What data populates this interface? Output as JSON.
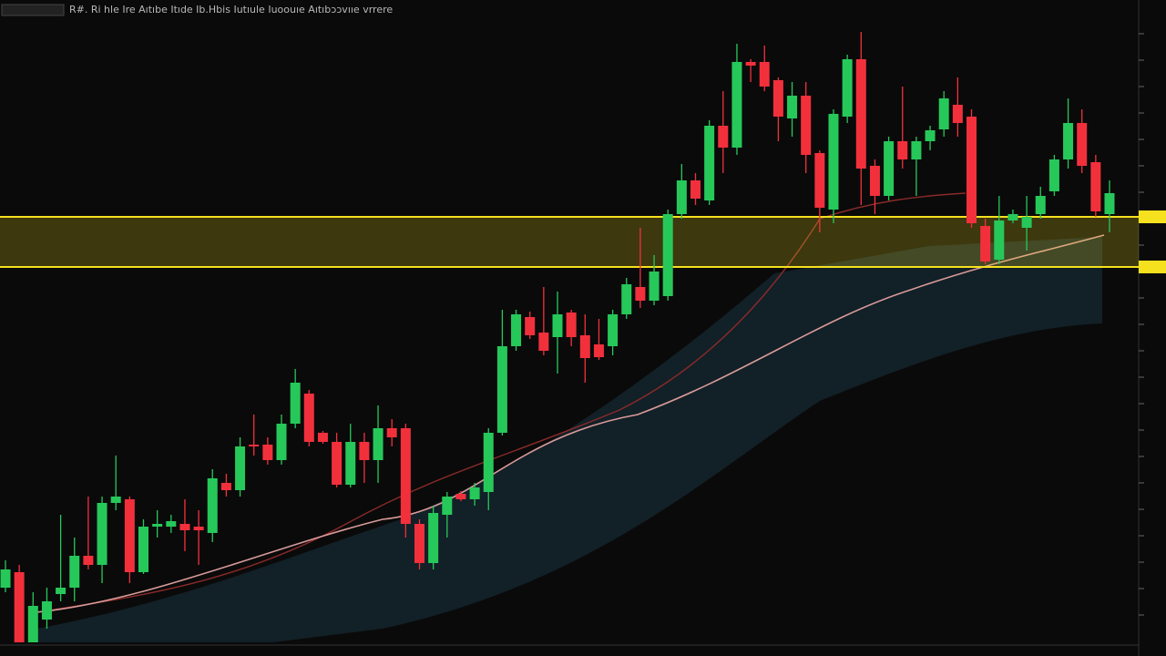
{
  "chart_data": {
    "type": "candlestick",
    "title": "R#. Ri hle Ire Aıtıbe Itıde Ib.Hbis Iutıule Iuoouıe Aıtıbɔɔvııe vrrere",
    "categories": [
      null,
      null,
      null,
      null,
      null,
      null,
      null,
      null,
      null,
      null,
      null,
      null,
      null,
      null,
      null,
      null,
      null,
      null,
      null,
      null,
      null,
      null,
      null,
      null,
      null,
      null,
      null,
      null,
      null,
      null,
      null,
      null,
      null,
      null,
      null,
      null,
      null,
      null,
      null,
      null,
      null,
      null,
      null,
      null,
      null,
      null,
      null,
      null,
      null,
      null,
      null,
      null,
      null,
      null,
      null,
      null,
      null,
      null,
      null,
      null,
      null,
      null,
      null,
      null,
      null,
      null,
      null,
      null,
      null,
      null,
      null,
      null,
      null,
      null,
      null,
      null,
      null,
      null,
      null,
      null,
      null
    ],
    "open": [
      60,
      77,
      0,
      25,
      53,
      60,
      95,
      85,
      153,
      157,
      77,
      127,
      127,
      130,
      127,
      120,
      175,
      167,
      217,
      217,
      200,
      240,
      273,
      230,
      220,
      173,
      220,
      200,
      235,
      235,
      130,
      87,
      140,
      163,
      157,
      165,
      230,
      325,
      357,
      340,
      335,
      362,
      337,
      327,
      325,
      360,
      390,
      375,
      380,
      470,
      507,
      485,
      567,
      543,
      637,
      637,
      617,
      575,
      600,
      537,
      475,
      577,
      640,
      523,
      490,
      550,
      530,
      550,
      563,
      590,
      577,
      457,
      420,
      463,
      455,
      470,
      495,
      530,
      570,
      527,
      470
    ],
    "high": [
      90,
      85,
      55,
      60,
      140,
      115,
      160,
      160,
      205,
      160,
      135,
      145,
      140,
      157,
      145,
      190,
      185,
      225,
      250,
      225,
      250,
      300,
      277,
      232,
      230,
      240,
      230,
      260,
      245,
      240,
      135,
      150,
      165,
      166,
      175,
      235,
      365,
      365,
      363,
      390,
      385,
      365,
      360,
      355,
      365,
      400,
      455,
      425,
      475,
      525,
      515,
      573,
      605,
      657,
      640,
      655,
      620,
      615,
      615,
      540,
      585,
      645,
      670,
      530,
      555,
      610,
      555,
      567,
      605,
      620,
      585,
      465,
      490,
      475,
      490,
      500,
      535,
      597,
      585,
      535,
      507
    ],
    "low": [
      55,
      0,
      0,
      15,
      45,
      45,
      80,
      65,
      145,
      65,
      75,
      115,
      120,
      100,
      85,
      110,
      160,
      160,
      205,
      195,
      195,
      235,
      215,
      218,
      170,
      170,
      175,
      175,
      215,
      115,
      80,
      80,
      115,
      155,
      150,
      145,
      227,
      320,
      333,
      315,
      295,
      325,
      285,
      310,
      315,
      355,
      367,
      370,
      375,
      465,
      480,
      480,
      515,
      535,
      615,
      605,
      550,
      555,
      515,
      450,
      460,
      570,
      480,
      470,
      485,
      520,
      490,
      540,
      555,
      555,
      455,
      415,
      415,
      460,
      430,
      465,
      490,
      520,
      515,
      467,
      450
    ],
    "close": [
      80,
      0,
      40,
      45,
      60,
      95,
      85,
      153,
      160,
      77,
      127,
      130,
      133,
      123,
      123,
      180,
      167,
      215,
      215,
      200,
      240,
      285,
      220,
      220,
      173,
      220,
      200,
      235,
      225,
      130,
      87,
      142,
      160,
      157,
      170,
      230,
      325,
      360,
      337,
      320,
      360,
      335,
      312,
      313,
      360,
      393,
      375,
      407,
      470,
      507,
      487,
      567,
      543,
      637,
      633,
      610,
      577,
      600,
      535,
      477,
      580,
      640,
      520,
      490,
      550,
      530,
      550,
      562,
      597,
      570,
      460,
      418,
      463,
      470,
      467,
      490,
      530,
      570,
      523,
      473,
      493
    ],
    "up_color": "#27c85a",
    "down_color": "#f2303c",
    "zone": [
      412,
      467
    ],
    "zone_color": "#f5e11e",
    "ylim": [
      0,
      705
    ],
    "yticks": [
      30,
      59,
      88,
      117,
      146,
      175,
      204,
      233,
      262,
      291,
      320,
      349,
      378,
      407,
      436,
      465,
      494,
      523,
      552,
      581,
      610,
      639,
      668
    ]
  }
}
